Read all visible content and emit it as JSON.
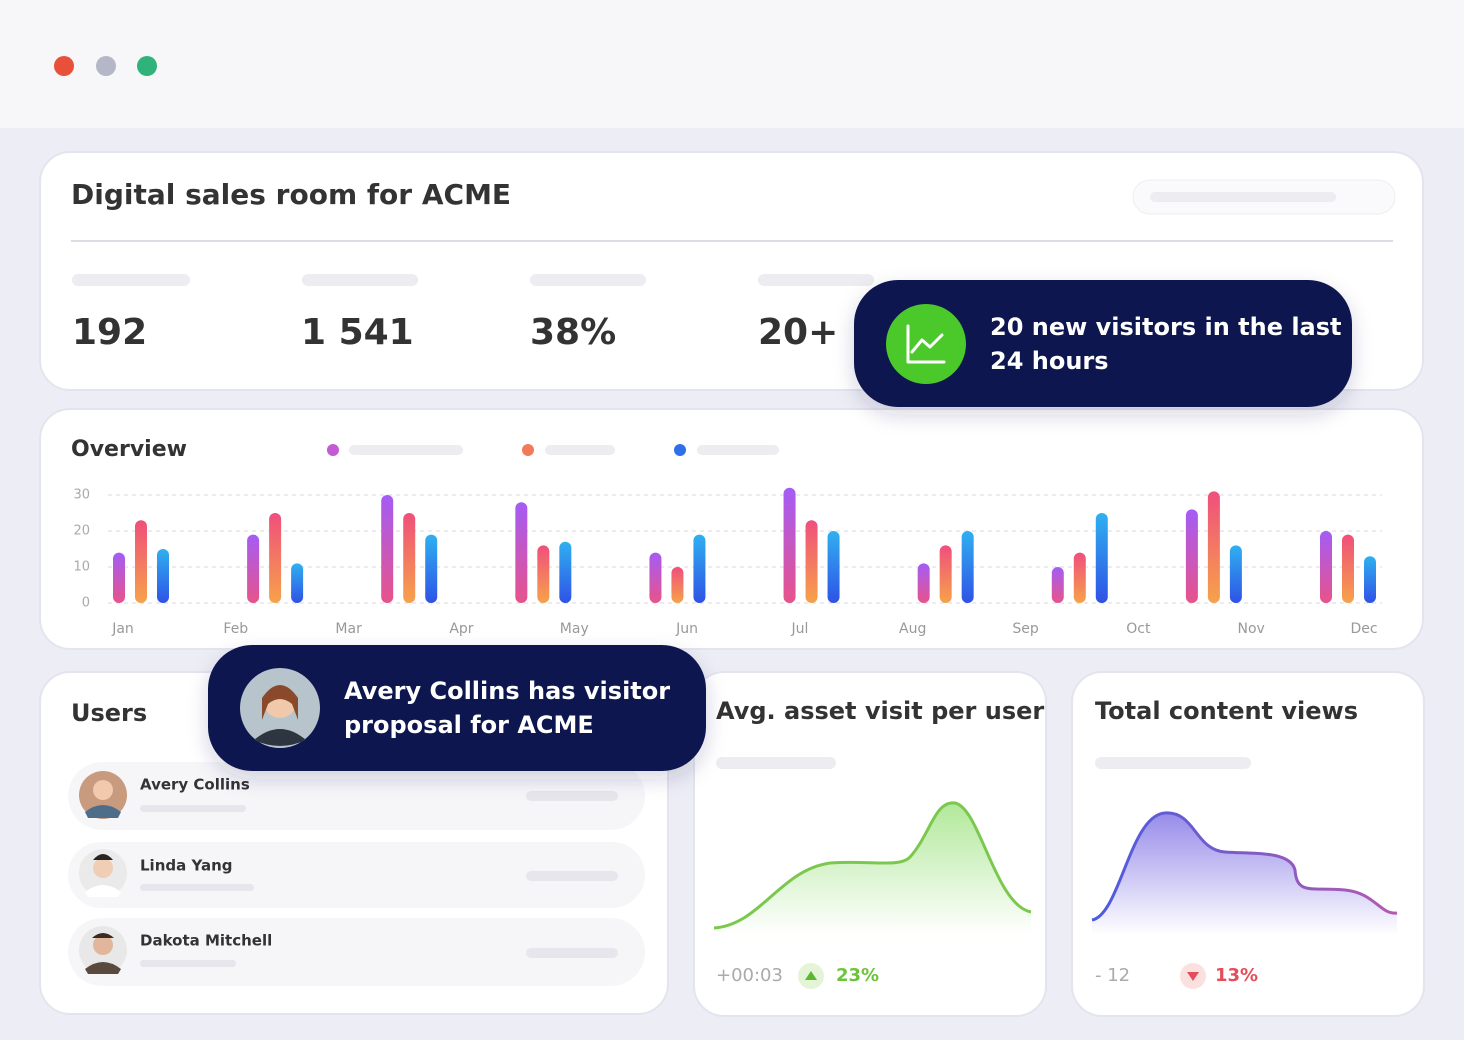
{
  "header": {
    "title": "Digital sales room for ACME"
  },
  "stats": [
    "192",
    "1 541",
    "38%",
    "20+"
  ],
  "notifications": [
    {
      "lines": [
        "20 new visitors in the last",
        "24 hours"
      ]
    },
    {
      "lines": [
        "Avery Collins has visitor",
        "proposal for ACME"
      ]
    }
  ],
  "users": {
    "title": "Users",
    "names": [
      "Avery Collins",
      "Linda Yang",
      "Dakota Mitchell"
    ]
  },
  "asset_card": {
    "title": "Avg. asset visit per user",
    "delta": "+00:03",
    "change": "23%"
  },
  "views_card": {
    "title": "Total content views",
    "delta": "- 12",
    "change": "13%"
  },
  "chart_data": {
    "type": "bar",
    "title": "Overview",
    "categories": [
      null,
      null,
      null,
      null,
      null,
      null,
      null,
      null,
      null,
      null
    ],
    "xlabels": [
      "Jan",
      "Feb",
      "Mar",
      "Apr",
      "May",
      "Jun",
      "Jul",
      "Aug",
      "Sep",
      "Oct",
      "Nov",
      "Dec"
    ],
    "series": [
      {
        "color": [
          "#a45cf6",
          "#e8538a"
        ],
        "values": [
          14,
          19,
          30,
          28,
          14,
          32,
          11,
          10,
          26,
          20
        ]
      },
      {
        "color": [
          "#ef4f7c",
          "#f7a24a"
        ],
        "values": [
          23,
          25,
          25,
          16,
          10,
          23,
          16,
          14,
          31,
          19
        ]
      },
      {
        "color": [
          "#2fb0f0",
          "#2f52e6"
        ],
        "values": [
          15,
          11,
          19,
          17,
          19,
          20,
          20,
          25,
          16,
          13
        ]
      }
    ],
    "legend_colors": [
      "#c35bd6",
      "#f07a5a",
      "#2f6fe8"
    ],
    "ylim": [
      0,
      30
    ],
    "yticks": [
      0,
      10,
      20,
      30
    ],
    "grid": true
  }
}
